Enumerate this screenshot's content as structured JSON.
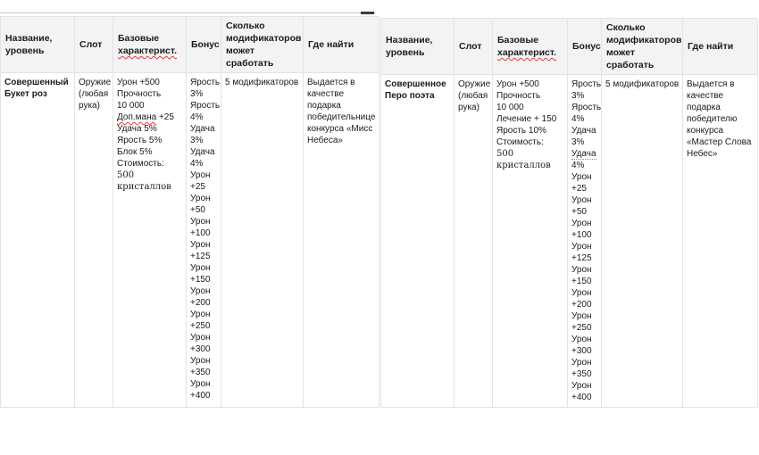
{
  "colors": {
    "text": "#1b1b1b",
    "header_bg": "#f2f3f4",
    "border": "#e3e3e3",
    "squiggle": "#e23b3b",
    "divider": "#c9c9c9",
    "divider_dash": "#3a3a3a"
  },
  "tables": [
    {
      "headers": [
        "Название, уровень",
        "Слот",
        {
          "pre": "Базовые ",
          "marked": "характерист.",
          "post": "",
          "mark": "red-squiggle"
        },
        "Бонус",
        "Сколько модификаторов может сработать",
        "Где найти"
      ],
      "row": {
        "name": "Совершенный Букет роз",
        "slot": "Оружие (любая рука)",
        "base_stats": [
          "Урон +500",
          "Прочность 10 000",
          {
            "pre": "",
            "marked": "Доп.мана",
            "post": " +25",
            "mark": "red-squiggle"
          },
          "Удача 5%",
          "Ярость 5%",
          "Блок 5%",
          "Стоимость:",
          {
            "pre": "",
            "marked": "500 кристаллов",
            "post": "",
            "mark": "serif"
          }
        ],
        "bonus": [
          "Ярость 3%",
          "Ярость 4%",
          "Удача 3%",
          "Удача 4%",
          "Урон +25",
          "Урон +50",
          "Урон +100",
          "Урон +125",
          "Урон +150",
          "Урон +200",
          "Урон +250",
          "Урон +300",
          "Урон +350",
          "Урон +400"
        ],
        "modifiers": "5 модификаторов",
        "where_find": "Выдается в качестве подарка победительнице конкурса «Мисс Небеса»"
      }
    },
    {
      "headers": [
        "Название, уровень",
        "Слот",
        {
          "pre": "Базовые ",
          "marked": "характерист.",
          "post": "",
          "mark": "red-squiggle"
        },
        "Бонус",
        "Сколько модификаторов может сработать",
        "Где найти"
      ],
      "row": {
        "name": "Совершенное Перо поэта",
        "slot": "Оружие (любая рука)",
        "base_stats": [
          "Урон +500",
          "Прочность 10 000",
          "Лечение + 150",
          "Ярость 10%",
          "Стоимость:",
          {
            "pre": "",
            "marked": "500 кристаллов",
            "post": "",
            "mark": "serif"
          }
        ],
        "bonus": [
          "Ярость 3%",
          "Ярость 4%",
          "Удача 3%",
          {
            "pre": "",
            "marked": "Удача",
            "post": " 4%",
            "mark": "gray-dotted"
          },
          "Урон +25",
          "Урон +50",
          "Урон +100",
          "Урон +125",
          "Урон +150",
          "Урон +200",
          "Урон +250",
          "Урон +300",
          "Урон +350",
          "Урон +400"
        ],
        "modifiers": "5 модификаторов",
        "where_find": "Выдается в качестве подарка победителю конкурса «Мастер Слова Небес»"
      }
    }
  ]
}
